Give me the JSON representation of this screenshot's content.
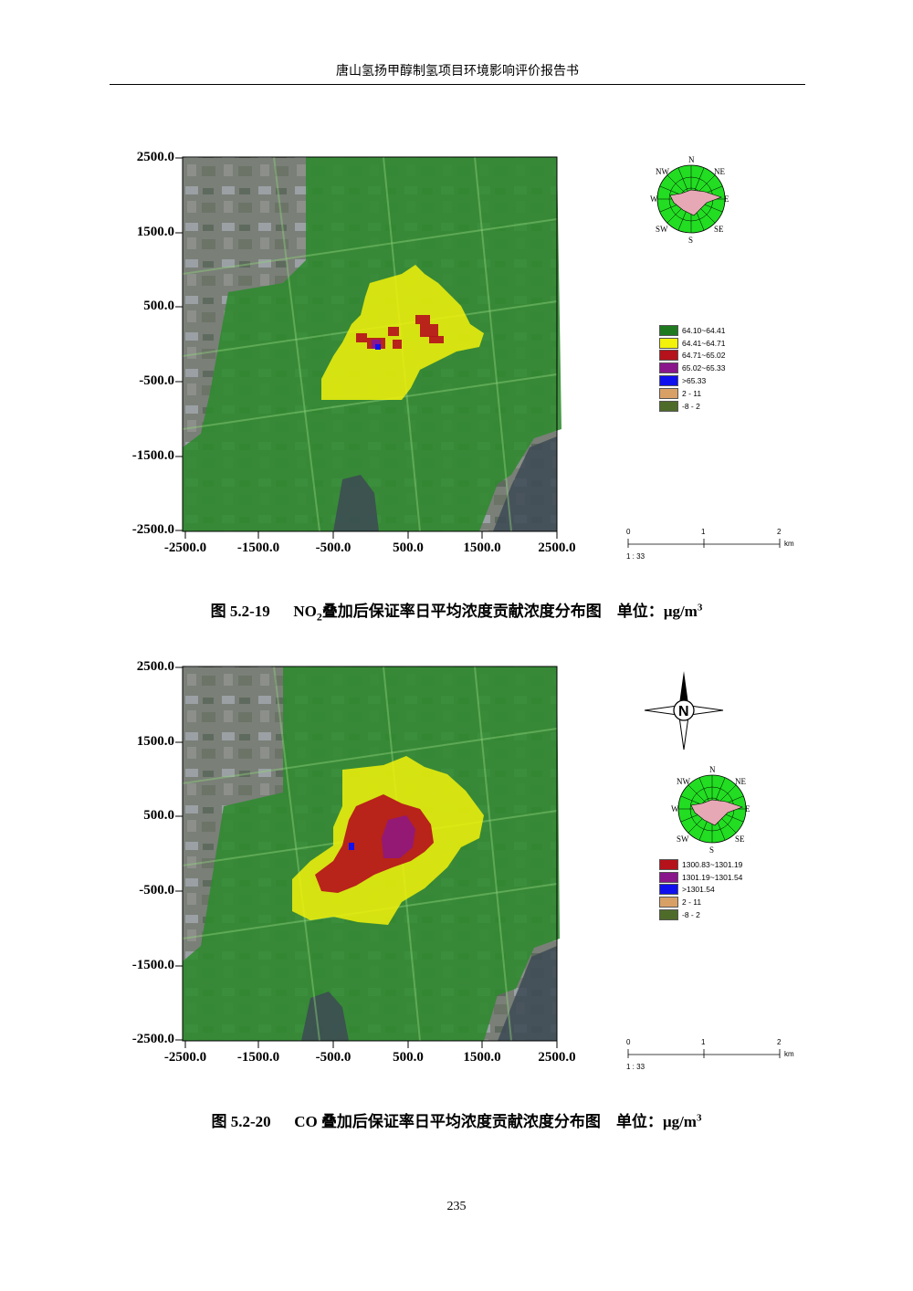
{
  "header": {
    "title": "唐山氢扬甲醇制氢项目环境影响评价报告书"
  },
  "figures": [
    {
      "id": "fig1",
      "y_ticks": [
        "2500.0",
        "1500.0",
        "500.0",
        "-500.0",
        "-1500.0",
        "-2500.0"
      ],
      "x_ticks": [
        "-2500.0",
        "-1500.0",
        "-500.0",
        "500.0",
        "1500.0",
        "2500.0"
      ],
      "legend": [
        {
          "label": "64.10~64.41",
          "color": "#1f7a1f"
        },
        {
          "label": "64.41~64.71",
          "color": "#f2f20a"
        },
        {
          "label": "64.71~65.02",
          "color": "#b5121b"
        },
        {
          "label": "65.02~65.33",
          "color": "#8a168c"
        },
        {
          "label": ">65.33",
          "color": "#1010ee"
        },
        {
          "label": "2 - 11",
          "color": "#d9a066"
        },
        {
          "label": "-8 - 2",
          "color": "#4f6b2a"
        }
      ],
      "scale": {
        "ticks": [
          "0",
          "1",
          "2"
        ],
        "unit": "km",
        "ratio": "1 : 33"
      },
      "rose_dirs": [
        "N",
        "NE",
        "E",
        "SE",
        "S",
        "SW",
        "W",
        "NW"
      ],
      "caption": {
        "number": "图 5.2-19",
        "pollutant_main": "NO",
        "pollutant_sub": "2",
        "title": "叠加后保证率日平均浓度贡献浓度分布图",
        "unit_label": "单位：",
        "unit_main": "μg/m",
        "unit_sup": "3"
      }
    },
    {
      "id": "fig2",
      "y_ticks": [
        "2500.0",
        "1500.0",
        "500.0",
        "-500.0",
        "-1500.0",
        "-2500.0"
      ],
      "x_ticks": [
        "-2500.0",
        "-1500.0",
        "-500.0",
        "500.0",
        "1500.0",
        "2500.0"
      ],
      "legend": [
        {
          "label": "1300.83~1301.19",
          "color": "#b5121b"
        },
        {
          "label": "1301.19~1301.54",
          "color": "#8a168c"
        },
        {
          "label": ">1301.54",
          "color": "#1010ee"
        },
        {
          "label": "2 - 11",
          "color": "#d9a066"
        },
        {
          "label": "-8 - 2",
          "color": "#4f6b2a"
        }
      ],
      "scale": {
        "ticks": [
          "0",
          "1",
          "2"
        ],
        "unit": "km",
        "ratio": "1 : 33"
      },
      "rose_dirs": [
        "N",
        "NE",
        "E",
        "SE",
        "S",
        "SW",
        "W",
        "NW"
      ],
      "compass_letter": "N",
      "caption": {
        "number": "图 5.2-20",
        "pollutant_main": "CO",
        "pollutant_sub": "",
        "title": "叠加后保证率日平均浓度贡献浓度分布图",
        "unit_label": "单位：",
        "unit_main": "μg/m",
        "unit_sup": "3"
      }
    }
  ],
  "page_number": "235"
}
